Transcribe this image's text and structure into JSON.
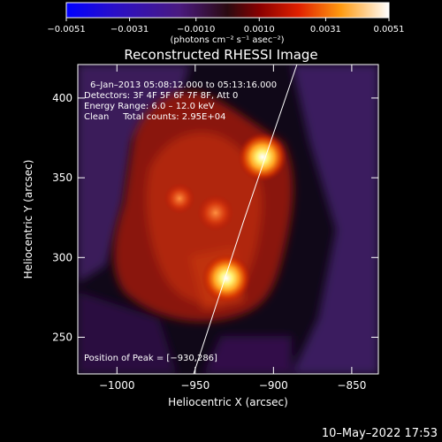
{
  "chart_data": {
    "type": "heatmap",
    "title": "Reconstructed RHESSI Image",
    "xlabel": "Heliocentric X (arcsec)",
    "ylabel": "Heliocentric Y (arcsec)",
    "xlim": [
      -1025,
      -833
    ],
    "ylim": [
      227,
      421
    ],
    "xticks": [
      -1000,
      -950,
      -900,
      -850
    ],
    "xtick_labels": [
      "−1000",
      "−950",
      "−900",
      "−850"
    ],
    "yticks": [
      250,
      300,
      350,
      400
    ],
    "ytick_labels": [
      "250",
      "300",
      "350",
      "400"
    ],
    "colorbar": {
      "min": -0.0051,
      "max": 0.0051,
      "ticks": [
        -0.0051,
        -0.0031,
        -0.001,
        0.001,
        0.0031,
        0.0051
      ],
      "tick_labels": [
        "−0.0051",
        "−0.0031",
        "−0.0010",
        "0.0010",
        "0.0031",
        "0.0051"
      ],
      "units_label": "(photons cm⁻² s⁻¹ asec⁻²)"
    },
    "annotations": {
      "time_range": "6–Jan–2013 05:08:12.000 to 05:13:16.000",
      "detectors": "Detectors: 3F 4F 5F 6F 7F 8F, Att 0",
      "energy": "Energy Range: 6.0 – 12.0 keV",
      "clean": "Clean     Total counts: 2.95E+04",
      "peak": "Position of Peak = [−930,286]"
    },
    "sources": [
      {
        "x": -907,
        "y": 363,
        "intensity": 1.0
      },
      {
        "x": -930,
        "y": 287,
        "intensity": 1.0
      },
      {
        "x": -937,
        "y": 328,
        "intensity": 0.55
      },
      {
        "x": -960,
        "y": 337,
        "intensity": 0.35
      }
    ],
    "limb_curve": [
      [
        -951,
        227
      ],
      [
        -935,
        275
      ],
      [
        -919,
        323
      ],
      [
        -902,
        372
      ],
      [
        -885,
        421
      ]
    ]
  },
  "footer": {
    "timestamp": "10–May–2022 17:53"
  }
}
